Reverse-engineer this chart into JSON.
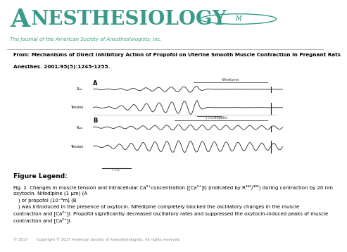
{
  "title_big": "ANESTHESIOLOGY",
  "subtitle_text": "The Journal of the American Society of Anesthesiologists, Inc.",
  "from_line1": "From: Mechanisms of Direct Inhibitory Action of Propofol on Uterine Smooth Muscle Contraction in Pregnant Rats",
  "from_line2": "Anesthes. 2001;95(5):1245-1255.",
  "teal_color": "#3a9a8a",
  "from_bg": "#e0e0e0",
  "legend_title": "Figure Legend:",
  "legend_line1": "Fig. 2. Changes in muscle tension and intracellular Ca2+concentration ([Ca2+]i) (indicated by R340/380) during contraction by 20 nm",
  "legend_line2": "oxytocin. Nifedipine (1 μm) (A",
  "legend_line3": "   ) or propofol (10⁻⁴m) (B",
  "legend_line4": "   ) was introduced in the presence of oxytocin. Nifedipine completely blocked the oscillatory changes in the muscle",
  "legend_line5": "contraction and [Ca2+]i. Propofol significantly decreased oscillatory rates and suppressed the oxytocin-induced peaks of muscle",
  "legend_line6": "contraction and [Ca2+]i.",
  "copyright_text": "© 2017        Copyright © 2017 American Society of Anesthesiologists. All rights reserved.",
  "panel_A_label": "A",
  "panel_B_label": "B",
  "trace_color": "#222222",
  "trace_lw": 0.6
}
